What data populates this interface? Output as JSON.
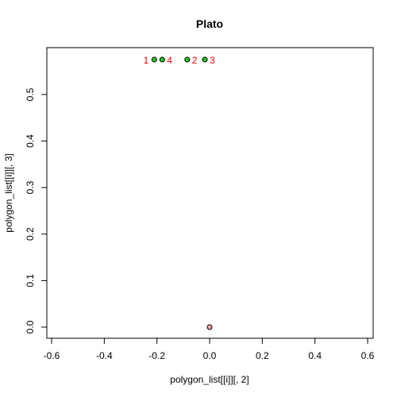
{
  "chart_data": {
    "type": "scatter",
    "title": "Plato",
    "xlabel": "polygon_list[[i]][, 2]",
    "ylabel": "polygon_list[[i]][, 3]",
    "xlim": [
      -0.6,
      0.6
    ],
    "ylim": [
      0.0,
      0.55
    ],
    "x_ticks": [
      -0.6,
      -0.4,
      -0.2,
      0.0,
      0.2,
      0.4,
      0.6
    ],
    "x_tick_labels": [
      "-0.6",
      "-0.4",
      "-0.2",
      "0.0",
      "0.2",
      "0.4",
      "0.6"
    ],
    "y_ticks": [
      0.0,
      0.1,
      0.2,
      0.3,
      0.4,
      0.5
    ],
    "y_tick_labels": [
      "0.0",
      "0.1",
      "0.2",
      "0.3",
      "0.4",
      "0.5"
    ],
    "grid": false,
    "series": [
      {
        "points": [
          {
            "x": -0.21,
            "y": 0.575,
            "label": "1",
            "label_side": "left"
          },
          {
            "x": -0.085,
            "y": 0.575,
            "label": "2",
            "label_side": "right"
          },
          {
            "x": -0.018,
            "y": 0.575,
            "label": "3",
            "label_side": "right"
          },
          {
            "x": -0.18,
            "y": 0.575,
            "label": "4",
            "label_side": "right"
          }
        ],
        "fill_color": "#22cc22",
        "label_color": "#ff0000"
      },
      {
        "points": [
          {
            "x": 0.0,
            "y": 0.0,
            "label": ""
          }
        ],
        "fill_color": "#f4a6b0",
        "label_color": "#ff0000"
      }
    ]
  }
}
